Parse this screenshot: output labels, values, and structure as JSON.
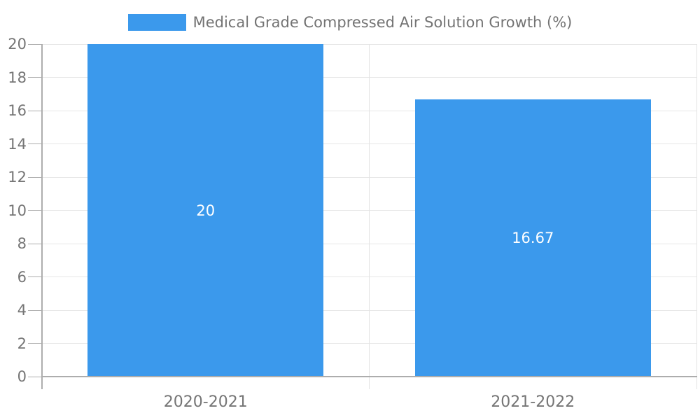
{
  "legend": {
    "label": "Medical Grade Compressed Air Solution Growth (%)"
  },
  "chart_data": {
    "type": "bar",
    "title": "Medical Grade Compressed Air Solution Growth (%)",
    "legend_position": "top-center",
    "categories": [
      "2020-2021",
      "2021-2022"
    ],
    "values": [
      20,
      16.67
    ],
    "bar_labels": [
      "20",
      "16.67"
    ],
    "xlabel": "",
    "ylabel": "",
    "ylim": [
      0,
      20
    ],
    "ytick_step": 2,
    "yticks": [
      0,
      2,
      4,
      6,
      8,
      10,
      12,
      14,
      16,
      18,
      20
    ],
    "grid": true,
    "colors": {
      "bar": "#3b99ec",
      "grid_line": "#e6e6e6",
      "boundary_line": "#e3e3e3",
      "axis_line": "#adadad",
      "tick_label": "#757575",
      "legend_text": "#737373",
      "bar_label": "#ffffff",
      "background": "#ffffff"
    }
  }
}
